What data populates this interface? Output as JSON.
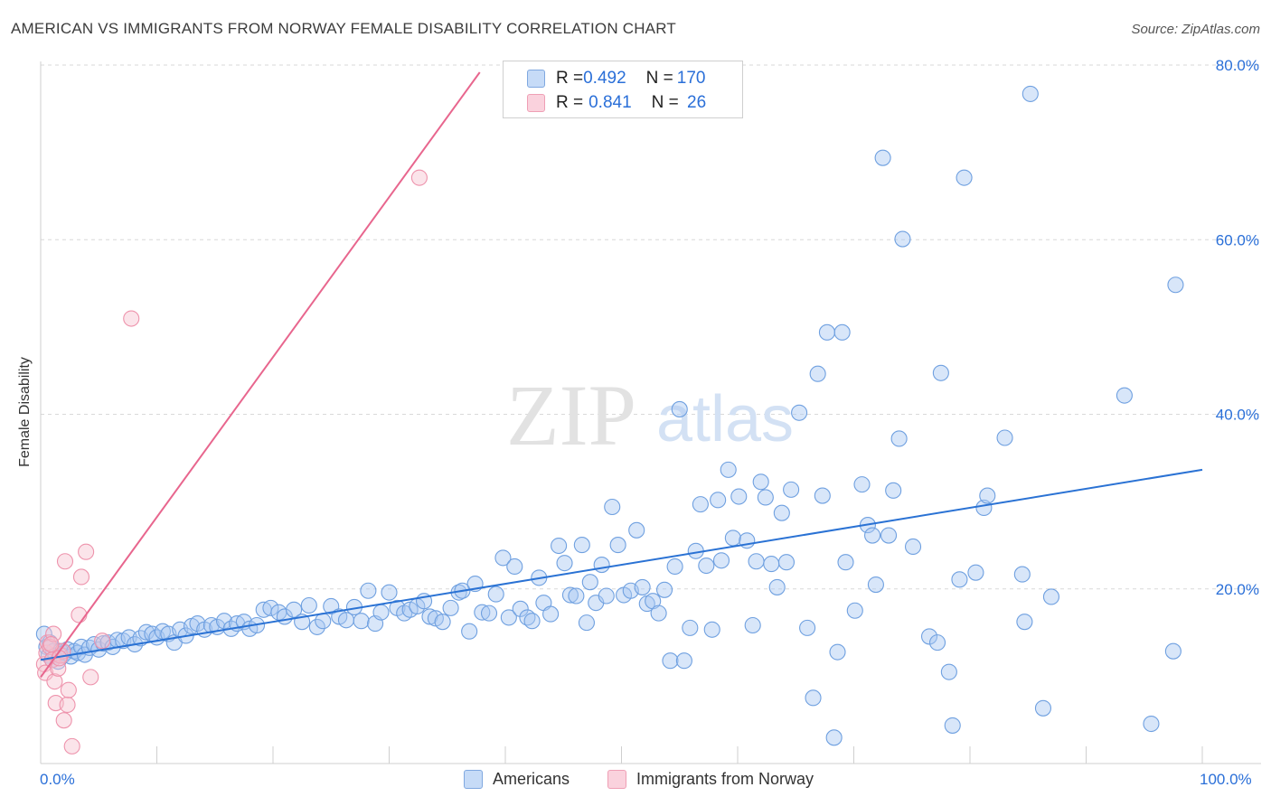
{
  "header": {
    "title": "AMERICAN VS IMMIGRANTS FROM NORWAY FEMALE DISABILITY CORRELATION CHART",
    "source": "Source: ZipAtlas.com"
  },
  "legend": {
    "rows": [
      {
        "r_label": "R = ",
        "r_value": "0.492",
        "n_label": "N = ",
        "n_value": "170",
        "color": "#a9c8f2"
      },
      {
        "r_label": "R = ",
        "r_value": "0.841",
        "n_label": "N = ",
        "n_value": " 26",
        "color": "#f6b8c8"
      }
    ],
    "bottom": [
      {
        "label": "Americans",
        "color": "#a9c8f2"
      },
      {
        "label": "Immigrants from Norway",
        "color": "#f6b8c8"
      }
    ]
  },
  "watermark": {
    "zip": "ZIP",
    "atlas": "atlas"
  },
  "colors": {
    "blue_fill": "#a9c8f2",
    "blue_stroke": "#6fa0e0",
    "blue_line": "#2a72d4",
    "pink_fill": "#f6c3d1",
    "pink_stroke": "#ee93ac",
    "pink_line": "#e8668e",
    "tick_text": "#2a6fd8",
    "grid": "#d9d9d9"
  },
  "chart_data": {
    "type": "scatter",
    "title": "AMERICAN VS IMMIGRANTS FROM NORWAY FEMALE DISABILITY CORRELATION CHART",
    "xlabel": "",
    "ylabel": "Female Disability",
    "xlim": [
      0,
      100
    ],
    "ylim": [
      0,
      80
    ],
    "x_tick_labels": [
      "0.0%",
      "100.0%"
    ],
    "y_ticks": [
      20,
      40,
      60,
      80
    ],
    "y_tick_labels": [
      "20.0%",
      "40.0%",
      "60.0%",
      "80.0%"
    ],
    "grid": true,
    "series": [
      {
        "name": "Americans",
        "R": 0.492,
        "N": 170,
        "trend": {
          "x": [
            0,
            100
          ],
          "y": [
            12.0,
            34.0
          ]
        },
        "points": [
          [
            0.3,
            15
          ],
          [
            0.5,
            13.5
          ],
          [
            0.7,
            12.5
          ],
          [
            0.8,
            14
          ],
          [
            1.0,
            12
          ],
          [
            1.1,
            13
          ],
          [
            1.3,
            12.5
          ],
          [
            1.5,
            11.8
          ],
          [
            1.7,
            13
          ],
          [
            1.9,
            12.5
          ],
          [
            2.1,
            12.8
          ],
          [
            2.3,
            13.2
          ],
          [
            2.6,
            12.4
          ],
          [
            2.9,
            13
          ],
          [
            3.2,
            12.8
          ],
          [
            3.5,
            13.5
          ],
          [
            3.8,
            12.6
          ],
          [
            4.2,
            13.4
          ],
          [
            4.6,
            13.8
          ],
          [
            5.0,
            13.2
          ],
          [
            5.4,
            13.9
          ],
          [
            5.8,
            14.0
          ],
          [
            6.2,
            13.5
          ],
          [
            6.6,
            14.3
          ],
          [
            7.1,
            14.2
          ],
          [
            7.6,
            14.6
          ],
          [
            8.1,
            13.8
          ],
          [
            8.6,
            14.5
          ],
          [
            9.1,
            15.2
          ],
          [
            9.6,
            15.0
          ],
          [
            10.0,
            14.6
          ],
          [
            10.5,
            15.3
          ],
          [
            11.0,
            15.0
          ],
          [
            11.5,
            14.0
          ],
          [
            12.0,
            15.5
          ],
          [
            12.5,
            14.8
          ],
          [
            13.0,
            15.9
          ],
          [
            13.5,
            16.2
          ],
          [
            14.1,
            15.5
          ],
          [
            14.7,
            16.0
          ],
          [
            15.2,
            15.8
          ],
          [
            15.8,
            16.5
          ],
          [
            16.4,
            15.6
          ],
          [
            16.9,
            16.2
          ],
          [
            17.5,
            16.4
          ],
          [
            18.0,
            15.6
          ],
          [
            18.6,
            16.0
          ],
          [
            19.2,
            17.8
          ],
          [
            19.8,
            18.0
          ],
          [
            20.5,
            17.5
          ],
          [
            21.0,
            17.0
          ],
          [
            21.8,
            17.8
          ],
          [
            22.5,
            16.4
          ],
          [
            23.1,
            18.3
          ],
          [
            23.8,
            15.8
          ],
          [
            24.3,
            16.5
          ],
          [
            25.0,
            18.2
          ],
          [
            25.7,
            17.0
          ],
          [
            26.3,
            16.6
          ],
          [
            27.0,
            18.1
          ],
          [
            27.6,
            16.5
          ],
          [
            28.2,
            20.0
          ],
          [
            28.8,
            16.2
          ],
          [
            29.3,
            17.5
          ],
          [
            30.0,
            19.8
          ],
          [
            30.7,
            18.0
          ],
          [
            31.3,
            17.4
          ],
          [
            31.8,
            17.8
          ],
          [
            32.4,
            18.2
          ],
          [
            33.0,
            18.8
          ],
          [
            33.5,
            17.0
          ],
          [
            34.0,
            16.8
          ],
          [
            34.6,
            16.4
          ],
          [
            35.3,
            18.0
          ],
          [
            36.0,
            19.8
          ],
          [
            36.3,
            20.0
          ],
          [
            36.9,
            15.3
          ],
          [
            37.4,
            20.8
          ],
          [
            38.0,
            17.5
          ],
          [
            38.6,
            17.4
          ],
          [
            39.2,
            19.6
          ],
          [
            39.8,
            23.8
          ],
          [
            40.3,
            16.9
          ],
          [
            40.8,
            22.8
          ],
          [
            41.3,
            17.9
          ],
          [
            41.9,
            16.9
          ],
          [
            42.3,
            16.5
          ],
          [
            42.9,
            21.5
          ],
          [
            43.3,
            18.6
          ],
          [
            43.9,
            17.3
          ],
          [
            44.6,
            25.2
          ],
          [
            45.1,
            23.2
          ],
          [
            45.6,
            19.5
          ],
          [
            46.1,
            19.4
          ],
          [
            46.6,
            25.3
          ],
          [
            47.0,
            16.3
          ],
          [
            47.3,
            21.0
          ],
          [
            47.8,
            18.6
          ],
          [
            48.3,
            23.0
          ],
          [
            48.7,
            19.4
          ],
          [
            49.2,
            29.7
          ],
          [
            49.7,
            25.3
          ],
          [
            50.2,
            19.5
          ],
          [
            50.8,
            20.0
          ],
          [
            51.3,
            27.0
          ],
          [
            51.8,
            20.4
          ],
          [
            52.2,
            18.5
          ],
          [
            52.7,
            18.8
          ],
          [
            53.2,
            17.4
          ],
          [
            53.7,
            20.1
          ],
          [
            54.2,
            11.9
          ],
          [
            54.6,
            22.8
          ],
          [
            55.0,
            41.0
          ],
          [
            55.4,
            11.9
          ],
          [
            55.9,
            15.7
          ],
          [
            56.4,
            24.6
          ],
          [
            56.8,
            30.0
          ],
          [
            57.3,
            22.9
          ],
          [
            57.8,
            15.5
          ],
          [
            58.3,
            30.5
          ],
          [
            58.6,
            23.5
          ],
          [
            59.2,
            34.0
          ],
          [
            59.6,
            26.1
          ],
          [
            60.1,
            30.9
          ],
          [
            60.8,
            25.8
          ],
          [
            61.3,
            16.0
          ],
          [
            61.6,
            23.4
          ],
          [
            62.0,
            32.6
          ],
          [
            62.4,
            30.8
          ],
          [
            62.9,
            23.1
          ],
          [
            63.4,
            20.4
          ],
          [
            63.8,
            29.0
          ],
          [
            64.2,
            23.3
          ],
          [
            64.6,
            31.7
          ],
          [
            65.3,
            40.6
          ],
          [
            66.0,
            15.7
          ],
          [
            66.5,
            7.6
          ],
          [
            66.9,
            45.1
          ],
          [
            67.3,
            31.0
          ],
          [
            67.7,
            49.9
          ],
          [
            68.3,
            3.0
          ],
          [
            68.6,
            12.9
          ],
          [
            69.0,
            49.9
          ],
          [
            69.3,
            23.3
          ],
          [
            70.1,
            17.7
          ],
          [
            70.7,
            32.3
          ],
          [
            71.2,
            27.6
          ],
          [
            71.6,
            26.4
          ],
          [
            71.9,
            20.7
          ],
          [
            72.5,
            70.1
          ],
          [
            73.0,
            26.4
          ],
          [
            73.4,
            31.6
          ],
          [
            73.9,
            37.6
          ],
          [
            74.2,
            60.7
          ],
          [
            75.1,
            25.1
          ],
          [
            76.5,
            14.7
          ],
          [
            77.2,
            14.0
          ],
          [
            77.5,
            45.2
          ],
          [
            78.2,
            10.6
          ],
          [
            78.5,
            4.4
          ],
          [
            79.1,
            21.3
          ],
          [
            79.5,
            67.8
          ],
          [
            80.5,
            22.1
          ],
          [
            81.2,
            29.6
          ],
          [
            81.5,
            31.0
          ],
          [
            83.0,
            37.7
          ],
          [
            84.5,
            21.9
          ],
          [
            84.7,
            16.4
          ],
          [
            85.2,
            77.5
          ],
          [
            86.3,
            6.4
          ],
          [
            87.0,
            19.3
          ],
          [
            93.3,
            42.6
          ],
          [
            95.6,
            4.6
          ],
          [
            97.5,
            13.0
          ],
          [
            97.7,
            55.4
          ]
        ]
      },
      {
        "name": "Immigrants from Norway",
        "R": 0.841,
        "N": 26,
        "trend": {
          "x": [
            0,
            37.8
          ],
          "y": [
            10.0,
            80.0
          ]
        },
        "points": [
          [
            0.3,
            11.5
          ],
          [
            0.4,
            10.5
          ],
          [
            0.5,
            12.8
          ],
          [
            0.6,
            14.0
          ],
          [
            0.8,
            13.5
          ],
          [
            1.0,
            12.0
          ],
          [
            1.1,
            15.0
          ],
          [
            1.2,
            9.5
          ],
          [
            1.3,
            7.0
          ],
          [
            1.5,
            11.0
          ],
          [
            1.7,
            12.5
          ],
          [
            1.9,
            13.0
          ],
          [
            2.0,
            5.0
          ],
          [
            2.1,
            23.4
          ],
          [
            2.3,
            6.8
          ],
          [
            2.4,
            8.5
          ],
          [
            2.7,
            2.0
          ],
          [
            3.3,
            17.2
          ],
          [
            3.5,
            21.6
          ],
          [
            3.9,
            24.5
          ],
          [
            4.3,
            10.0
          ],
          [
            5.3,
            14.2
          ],
          [
            7.8,
            51.5
          ],
          [
            32.6,
            67.8
          ],
          [
            0.9,
            13.8
          ],
          [
            1.6,
            12.2
          ]
        ]
      }
    ]
  }
}
